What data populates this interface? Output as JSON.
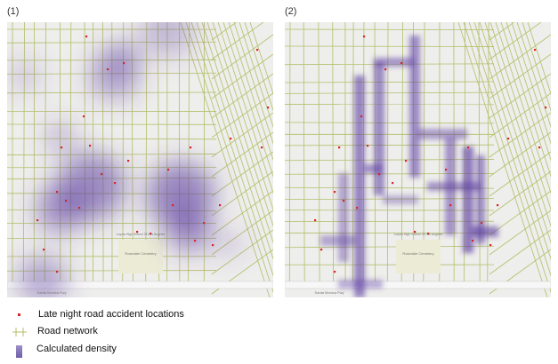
{
  "panels": [
    {
      "label": "(1)",
      "method": "kernel-density",
      "labels": {
        "cemetery": "Rosedale Cemetery",
        "freeway": "Santa Monica Fwy",
        "school": "Loyola High School Of Los Angeles"
      }
    },
    {
      "label": "(2)",
      "method": "network-density",
      "labels": {
        "cemetery": "Rosedale Cemetery",
        "freeway": "Santa Monica Fwy",
        "school": "Loyola High School Of Los Angeles"
      }
    }
  ],
  "legend": [
    {
      "label": "Late night road accident locations",
      "icon": "red-dot-icon",
      "color": "#d62728"
    },
    {
      "label": "Road network",
      "icon": "road-line-icon",
      "color": "#a8b85a"
    },
    {
      "label": "Calculated density",
      "icon": "density-swatch-icon",
      "color": "#7b68b0"
    }
  ],
  "colors": {
    "road": "#b4bf6a",
    "density": "#5a3aa0",
    "background": "#eeeeec",
    "accident": "#d62728"
  }
}
